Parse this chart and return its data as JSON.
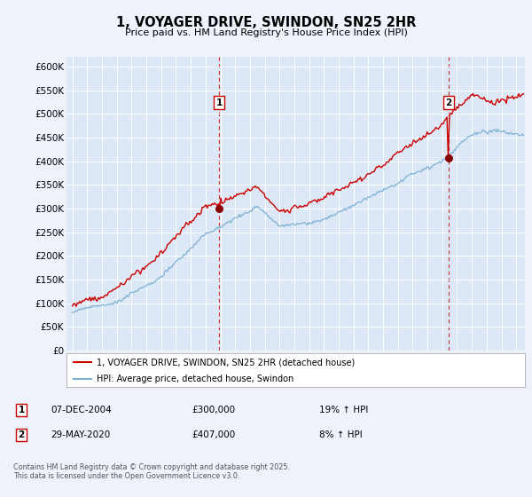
{
  "title": "1, VOYAGER DRIVE, SWINDON, SN25 2HR",
  "subtitle": "Price paid vs. HM Land Registry's House Price Index (HPI)",
  "ylim": [
    0,
    620000
  ],
  "xlim_year_start": 1994.6,
  "xlim_year_end": 2025.6,
  "hpi_color": "#7bafd4",
  "price_color": "#cc0000",
  "vline_color": "#cc0000",
  "annotation1_year": 2004.93,
  "annotation1_price": 300000,
  "annotation1_date": "07-DEC-2004",
  "annotation1_hpi_change": "19% ↑ HPI",
  "annotation2_year": 2020.41,
  "annotation2_price": 407000,
  "annotation2_date": "29-MAY-2020",
  "annotation2_hpi_change": "8% ↑ HPI",
  "legend_label1": "1, VOYAGER DRIVE, SWINDON, SN25 2HR (detached house)",
  "legend_label2": "HPI: Average price, detached house, Swindon",
  "footnote": "Contains HM Land Registry data © Crown copyright and database right 2025.\nThis data is licensed under the Open Government Licence v3.0.",
  "bg_color": "#eef2fb",
  "plot_bg_color": "#dce8f5",
  "grid_color": "#ffffff",
  "yticks": [
    0,
    50000,
    100000,
    150000,
    200000,
    250000,
    300000,
    350000,
    400000,
    450000,
    500000,
    550000,
    600000
  ]
}
